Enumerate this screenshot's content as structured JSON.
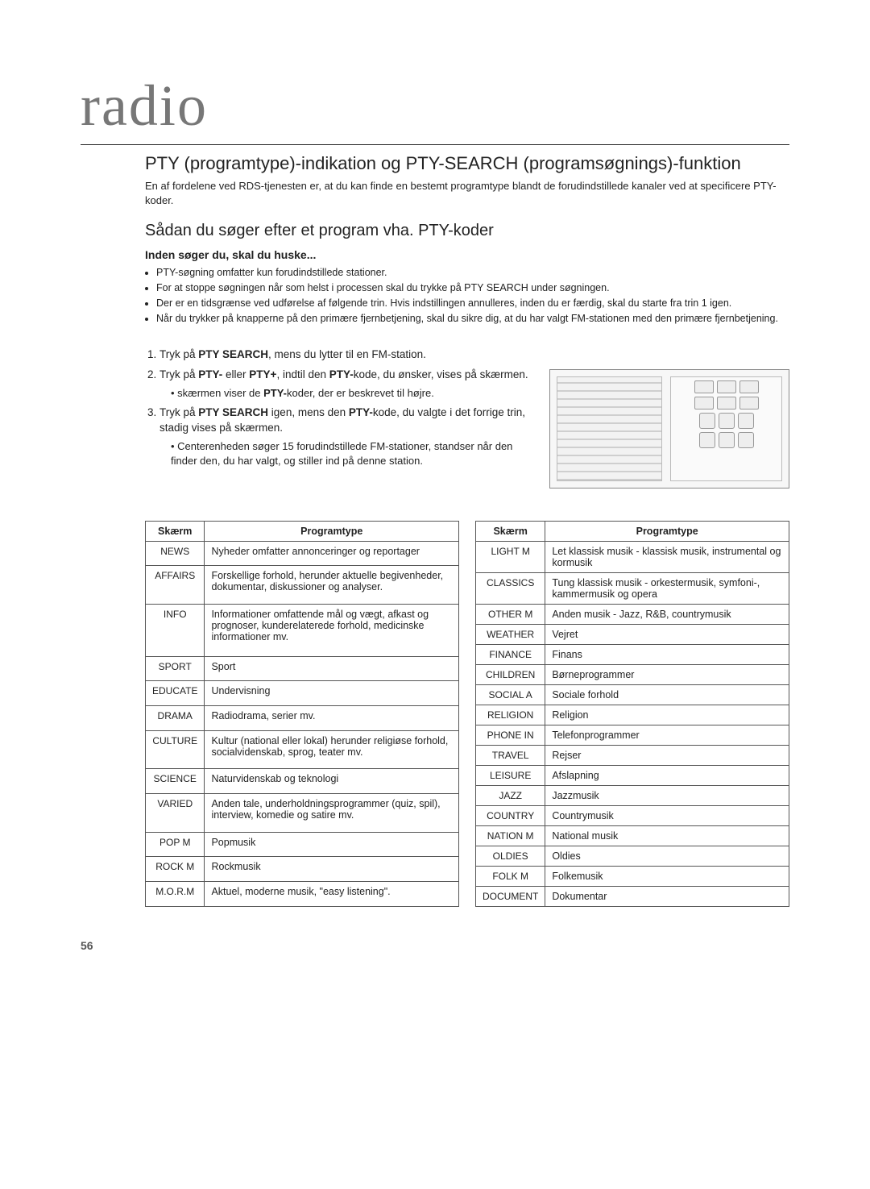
{
  "brand": "radio",
  "section_title": "PTY (programtype)-indikation og PTY-SEARCH (programsøgnings)-funktion",
  "intro": "En af fordelene ved RDS-tjenesten er, at du kan finde en bestemt programtype blandt de forudindstillede kanaler ved at specificere PTY-koder.",
  "subhead": "Sådan du søger efter et program vha. PTY-koder",
  "subsub": "Inden søger du, skal du huske...",
  "bullets": [
    "PTY-søgning omfatter kun forudindstillede stationer.",
    "For at stoppe søgningen når som helst i processen skal du trykke på PTY SEARCH under søgningen.",
    "Der er en tidsgrænse ved udførelse af følgende trin. Hvis indstillingen annulleres, inden du er færdig, skal du starte fra trin 1 igen.",
    "Når du trykker på knapperne på den primære fjernbetjening, skal du sikre dig, at du har valgt FM-stationen med den primære fjernbetjening."
  ],
  "steps": {
    "s1a": "Tryk på ",
    "s1b": "PTY SEARCH",
    "s1c": ", mens du lytter til en FM-station.",
    "s2a": "Tryk på ",
    "s2b": "PTY-",
    "s2c": " eller ",
    "s2d": "PTY+",
    "s2e": ", indtil den ",
    "s2f": "PTY-",
    "s2g": "kode, du ønsker, vises på skærmen.",
    "sub2a": "skærmen viser de ",
    "sub2b": "PTY-",
    "sub2c": "koder, der er beskrevet til højre.",
    "s3a": "Tryk på ",
    "s3b": "PTY SEARCH",
    "s3c": " igen, mens den ",
    "s3d": "PTY-",
    "s3e": "kode, du valgte i det forrige trin, stadig vises på skærmen.",
    "sub3": "Centerenheden søger 15 forudindstillede FM-stationer, standser når den finder den, du har valgt, og stiller ind på denne station."
  },
  "table_headers": {
    "col1": "Skærm",
    "col2": "Programtype"
  },
  "table_left": [
    [
      "NEWS",
      "Nyheder omfatter annonceringer og reportager"
    ],
    [
      "AFFAIRS",
      "Forskellige forhold, herunder aktuelle begivenheder, dokumentar, diskussioner og analyser."
    ],
    [
      "INFO",
      "Informationer omfattende mål og vægt, afkast og prognoser, kunderelaterede forhold, medicinske informationer mv."
    ],
    [
      "SPORT",
      "Sport"
    ],
    [
      "EDUCATE",
      "Undervisning"
    ],
    [
      "DRAMA",
      "Radiodrama, serier mv."
    ],
    [
      "CULTURE",
      "Kultur (national eller lokal) herunder religiøse forhold, socialvidenskab, sprog, teater mv."
    ],
    [
      "SCIENCE",
      "Naturvidenskab og teknologi"
    ],
    [
      "VARIED",
      "Anden tale, underholdningsprogrammer (quiz, spil), interview, komedie og satire mv."
    ],
    [
      "POP M",
      "Popmusik"
    ],
    [
      "ROCK M",
      "Rockmusik"
    ],
    [
      "M.O.R.M",
      "Aktuel, moderne musik, \"easy listening\"."
    ]
  ],
  "table_right": [
    [
      "LIGHT M",
      "Let klassisk musik - klassisk musik, instrumental og kormusik"
    ],
    [
      "CLASSICS",
      "Tung klassisk musik - orkestermusik, symfoni-, kammermusik og opera"
    ],
    [
      "OTHER M",
      "Anden musik - Jazz, R&B, countrymusik"
    ],
    [
      "WEATHER",
      "Vejret"
    ],
    [
      "FINANCE",
      "Finans"
    ],
    [
      "CHILDREN",
      "Børneprogrammer"
    ],
    [
      "SOCIAL A",
      "Sociale forhold"
    ],
    [
      "RELIGION",
      "Religion"
    ],
    [
      "PHONE IN",
      "Telefonprogrammer"
    ],
    [
      "TRAVEL",
      "Rejser"
    ],
    [
      "LEISURE",
      "Afslapning"
    ],
    [
      "JAZZ",
      "Jazzmusik"
    ],
    [
      "COUNTRY",
      "Countrymusik"
    ],
    [
      "NATION M",
      "National musik"
    ],
    [
      "OLDIES",
      "Oldies"
    ],
    [
      "FOLK M",
      "Folkemusik"
    ],
    [
      "DOCUMENT",
      "Dokumentar"
    ]
  ],
  "page_num": "56"
}
